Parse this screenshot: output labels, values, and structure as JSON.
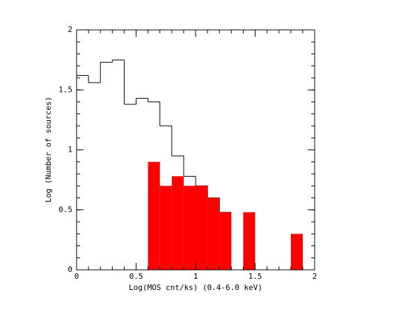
{
  "chart_data": {
    "type": "histogram",
    "xlabel": "Log(MOS cnt/ks) (0.4-6.0 keV)",
    "ylabel": "Log (Number of sources)",
    "xlim": [
      0,
      2
    ],
    "ylim": [
      0,
      2
    ],
    "xticks": [
      0,
      0.5,
      1,
      1.5,
      2
    ],
    "yticks": [
      0,
      0.5,
      1,
      1.5,
      2
    ],
    "xminor": 0.1,
    "yminor": 0.1,
    "series": [
      {
        "histtype": "step",
        "color": "#000000",
        "bins": [
          0,
          0.1,
          0.2,
          0.3,
          0.4,
          0.5,
          0.6,
          0.7,
          0.8,
          0.9,
          1.0,
          1.1,
          1.2,
          1.3
        ],
        "values": [
          1.62,
          1.56,
          1.73,
          1.75,
          1.38,
          1.43,
          1.4,
          1.2,
          0.95,
          0.78,
          0.7,
          0.6,
          0.48
        ]
      },
      {
        "histtype": "bar",
        "color": "#ff0000",
        "bins": [
          0.6,
          0.7,
          0.8,
          0.9,
          1.0,
          1.1,
          1.2,
          1.3,
          1.4,
          1.5,
          1.6,
          1.7,
          1.8,
          1.9
        ],
        "values": [
          0.9,
          0.7,
          0.78,
          0.7,
          0.7,
          0.6,
          0.48,
          0,
          0.48,
          0,
          0,
          0,
          0.3
        ]
      }
    ]
  }
}
